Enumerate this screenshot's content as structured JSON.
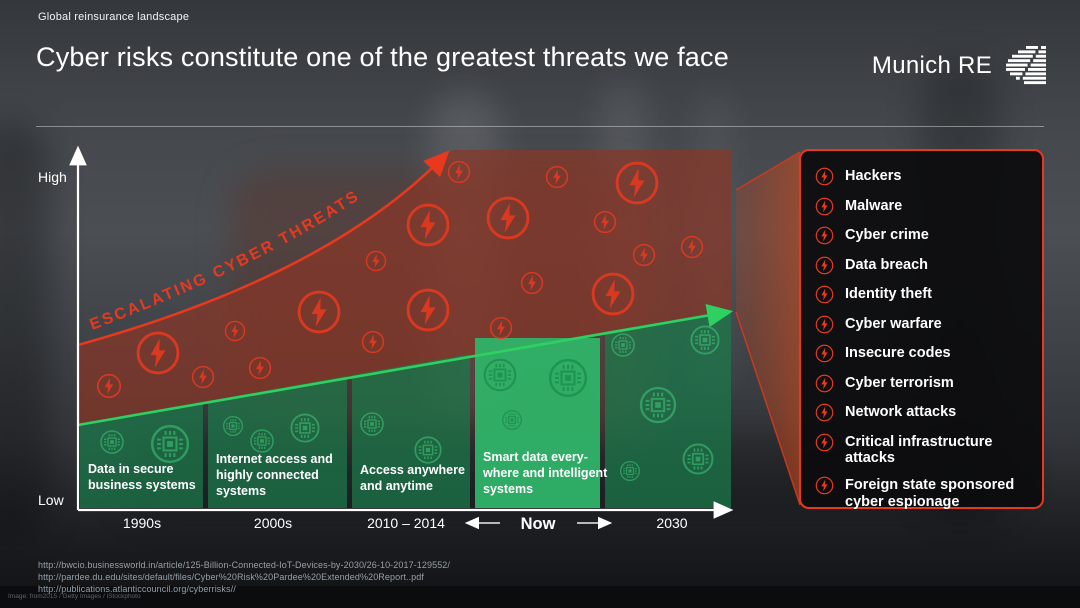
{
  "colors": {
    "accent_red": "#e8391f",
    "growth_green": "#2ed161"
  },
  "header": {
    "eyebrow": "Global reinsurance landscape",
    "title": "Cyber risks constitute one of the greatest threats we face",
    "brand": "Munich RE"
  },
  "chart": {
    "type": "conceptual-area-trend",
    "y_axis": {
      "high": "High",
      "low": "Low"
    },
    "trend_label": "ESCALATING CYBER THREATS",
    "eras": [
      {
        "period": "1990s",
        "label": "Data in secure business systems",
        "label_lines": [
          "Data in secure",
          "business systems"
        ]
      },
      {
        "period": "2000s",
        "label": "Internet access and highly connected systems",
        "label_lines": [
          "Internet access and",
          "highly connected",
          "systems"
        ]
      },
      {
        "period": "2010 – 2014",
        "label": "Access anywhere and anytime",
        "label_lines": [
          "Access anywhere",
          "and anytime"
        ]
      },
      {
        "period": "Now",
        "label": "Smart data everywhere and intelligent systems",
        "label_lines": [
          "Smart data every-",
          "where and intelligent",
          "systems"
        ]
      },
      {
        "period": "2030",
        "label": "",
        "label_lines": []
      }
    ]
  },
  "threat_panel": {
    "items": [
      "Hackers",
      "Malware",
      "Cyber crime",
      "Data breach",
      "Identity theft",
      "Cyber warfare",
      "Insecure codes",
      "Cyber terrorism",
      "Network attacks",
      "Critical infrastructure attacks",
      "Foreign state sponsored cyber espionage"
    ]
  },
  "footer": {
    "sources": [
      "http://bwcio.businessworld.in/article/125-Billion-Connected-IoT-Devices-by-2030/26-10-2017-129552/",
      "http://pardee.du.edu/sites/default/files/Cyber%20Risk%20Pardee%20Extended%20Report..pdf",
      "http://publications.atlanticcouncil.org/cyberrisks//"
    ],
    "credit": "Image: from2015 / Getty Images / iStockphoto"
  }
}
